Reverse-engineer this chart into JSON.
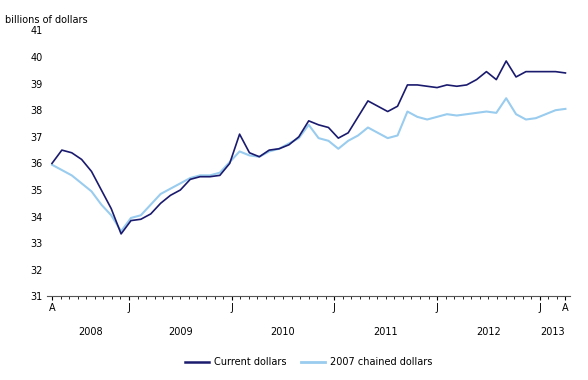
{
  "title": "",
  "ylabel": "billions of dollars",
  "ylim": [
    31,
    41
  ],
  "yticks": [
    31,
    32,
    33,
    34,
    35,
    36,
    37,
    38,
    39,
    40,
    41
  ],
  "current_dollars": [
    36.0,
    36.5,
    36.4,
    36.15,
    35.7,
    35.0,
    34.3,
    33.35,
    33.85,
    33.9,
    34.1,
    34.5,
    34.8,
    35.0,
    35.4,
    35.5,
    35.5,
    35.55,
    36.0,
    37.1,
    36.4,
    36.25,
    36.5,
    36.55,
    36.7,
    37.0,
    37.6,
    37.45,
    37.35,
    36.95,
    37.15,
    37.75,
    38.35,
    38.15,
    37.95,
    38.15,
    38.95,
    38.95,
    38.9,
    38.85,
    38.95,
    38.9,
    38.95,
    39.15,
    39.45,
    39.15,
    39.85,
    39.25,
    39.45,
    39.45,
    39.45,
    39.45,
    39.4
  ],
  "chained_dollars": [
    35.95,
    35.75,
    35.55,
    35.25,
    34.95,
    34.45,
    34.05,
    33.45,
    33.95,
    34.05,
    34.45,
    34.85,
    35.05,
    35.25,
    35.45,
    35.55,
    35.55,
    35.65,
    36.05,
    36.45,
    36.3,
    36.25,
    36.45,
    36.55,
    36.75,
    36.95,
    37.45,
    36.95,
    36.85,
    36.55,
    36.85,
    37.05,
    37.35,
    37.15,
    36.95,
    37.05,
    37.95,
    37.75,
    37.65,
    37.75,
    37.85,
    37.8,
    37.85,
    37.9,
    37.95,
    37.9,
    38.45,
    37.85,
    37.65,
    37.7,
    37.85,
    38.0,
    38.05
  ],
  "current_color": "#1a1a6e",
  "chained_color": "#99ccee",
  "background_color": "#ffffff",
  "legend_labels": [
    "Current dollars",
    "2007 chained dollars"
  ],
  "x_tick_labels": [
    "A",
    "J",
    "J",
    "J",
    "J",
    "J",
    "A"
  ],
  "x_year_labels": [
    "2008",
    "2009",
    "2010",
    "2011",
    "2012",
    "2013"
  ],
  "n_points": 53,
  "total_months": 60,
  "tick_months": [
    0,
    9,
    21,
    33,
    45,
    57,
    60
  ],
  "year_center_months": [
    4.5,
    15,
    27,
    39,
    51,
    58.5
  ]
}
